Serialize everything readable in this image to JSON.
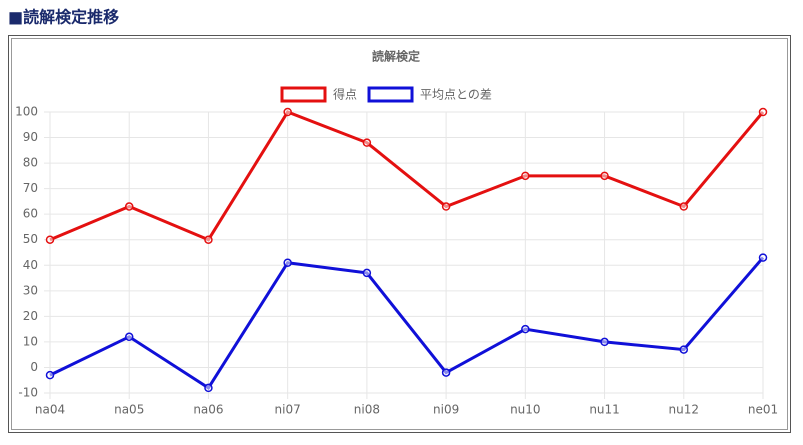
{
  "header": {
    "title": "■読解検定推移"
  },
  "chart_data": {
    "type": "line",
    "title": "読解検定",
    "categories": [
      "na04",
      "na05",
      "na06",
      "ni07",
      "ni08",
      "ni09",
      "nu10",
      "nu11",
      "nu12",
      "ne01"
    ],
    "series": [
      {
        "name": "得点",
        "color": "#e41010",
        "values": [
          50,
          63,
          50,
          100,
          88,
          63,
          75,
          75,
          63,
          100
        ]
      },
      {
        "name": "平均点との差",
        "color": "#1010d8",
        "values": [
          -3,
          12,
          -8,
          41,
          37,
          -2,
          15,
          10,
          7,
          43
        ]
      }
    ],
    "ylim": [
      -10,
      100
    ],
    "yticks": [
      -10,
      0,
      10,
      20,
      30,
      40,
      50,
      60,
      70,
      80,
      90,
      100
    ],
    "grid": true,
    "legend": "top"
  }
}
